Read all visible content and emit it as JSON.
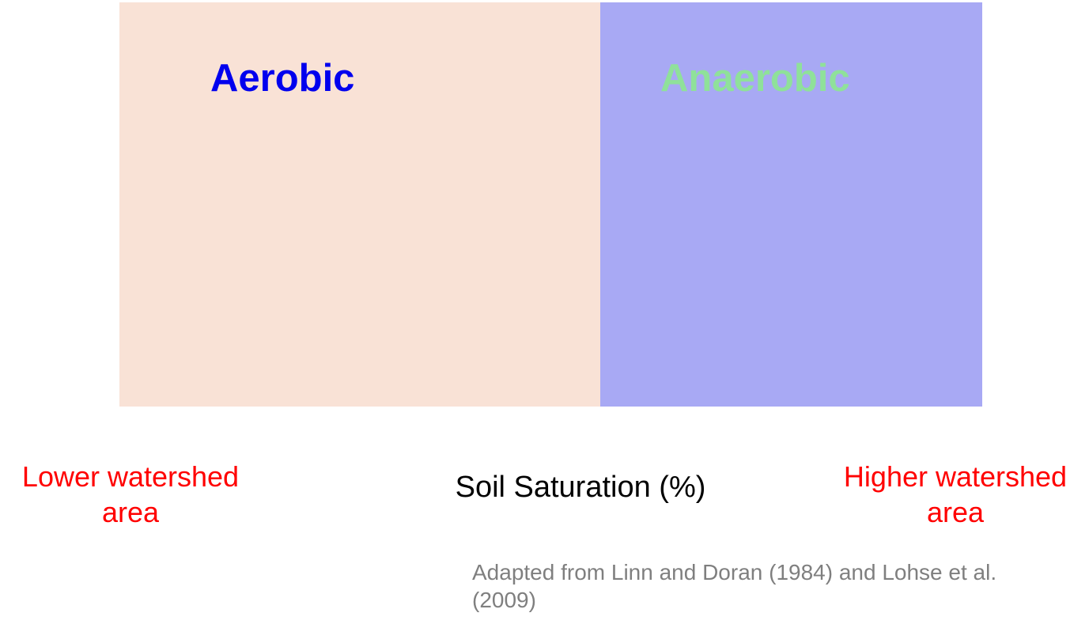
{
  "zones": {
    "aerobic": {
      "label": "Aerobic",
      "label_color": "#0000ee",
      "fill_color": "#f9e2d6"
    },
    "anaerobic": {
      "label": "Anaerobic",
      "label_color": "#8fe19a",
      "fill_color": "#a8a9f4"
    }
  },
  "axis": {
    "label": "Soil Saturation (%)"
  },
  "ends": {
    "left": "Lower watershed area",
    "right": "Higher watershed area",
    "color": "#ff0000"
  },
  "source": {
    "text": "Adapted from Linn and Doran (1984) and Lohse et al. (2009)"
  }
}
